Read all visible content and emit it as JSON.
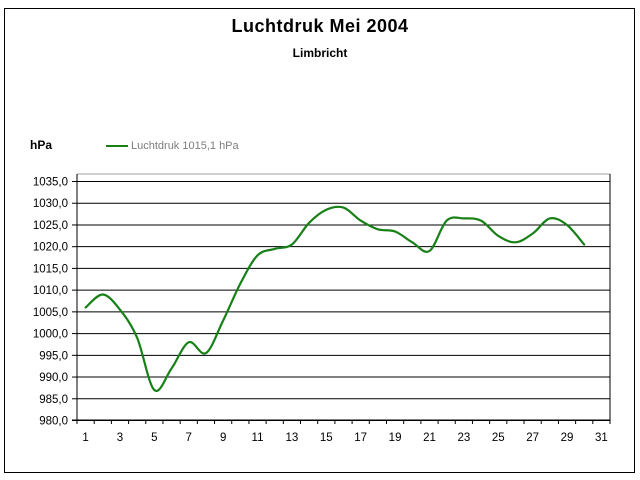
{
  "window": {
    "background": "#ffffff",
    "border_color": "#000000"
  },
  "chart_data": {
    "type": "line",
    "title": "Luchtdruk Mei 2004",
    "subtitle": "Limbricht",
    "ylabel": "hPa",
    "xlabel": "",
    "legend": {
      "label": "Luchtdruk 1015,1 hPa",
      "position": "top-left",
      "swatch_color": "#178017",
      "text_color": "#7d7d7d"
    },
    "line_color": "#178017",
    "grid": true,
    "grid_color": "#000000",
    "plot_top_border_color": "#c0c0c0",
    "ylim": [
      980,
      1035
    ],
    "ytick_step": 5,
    "ytick_labels": [
      "1035,0",
      "1030,0",
      "1025,0",
      "1020,0",
      "1015,0",
      "1010,0",
      "1005,0",
      "1000,0",
      "995,0",
      "990,0",
      "985,0",
      "980,0"
    ],
    "xlim_days": [
      1,
      31
    ],
    "xtick_labels": [
      "1",
      "3",
      "5",
      "7",
      "9",
      "11",
      "13",
      "15",
      "17",
      "19",
      "21",
      "23",
      "25",
      "27",
      "29",
      "31"
    ],
    "x": [
      1,
      2,
      3,
      4,
      5,
      6,
      7,
      8,
      9,
      10,
      11,
      12,
      13,
      14,
      15,
      16,
      17,
      18,
      19,
      20,
      21,
      22,
      23,
      24,
      25,
      26,
      27,
      28,
      29,
      30
    ],
    "series": [
      {
        "name": "Luchtdruk 1015,1 hPa",
        "color": "#178017",
        "values": [
          1006,
          1009,
          1005.5,
          999,
          987,
          992,
          998,
          995.5,
          1003,
          1011.5,
          1018,
          1019.5,
          1020.5,
          1025.5,
          1028.5,
          1029,
          1026,
          1024,
          1023.5,
          1021,
          1019,
          1026,
          1026.5,
          1026,
          1022.5,
          1021,
          1023,
          1026.5,
          1025,
          1020.5
        ]
      }
    ]
  }
}
